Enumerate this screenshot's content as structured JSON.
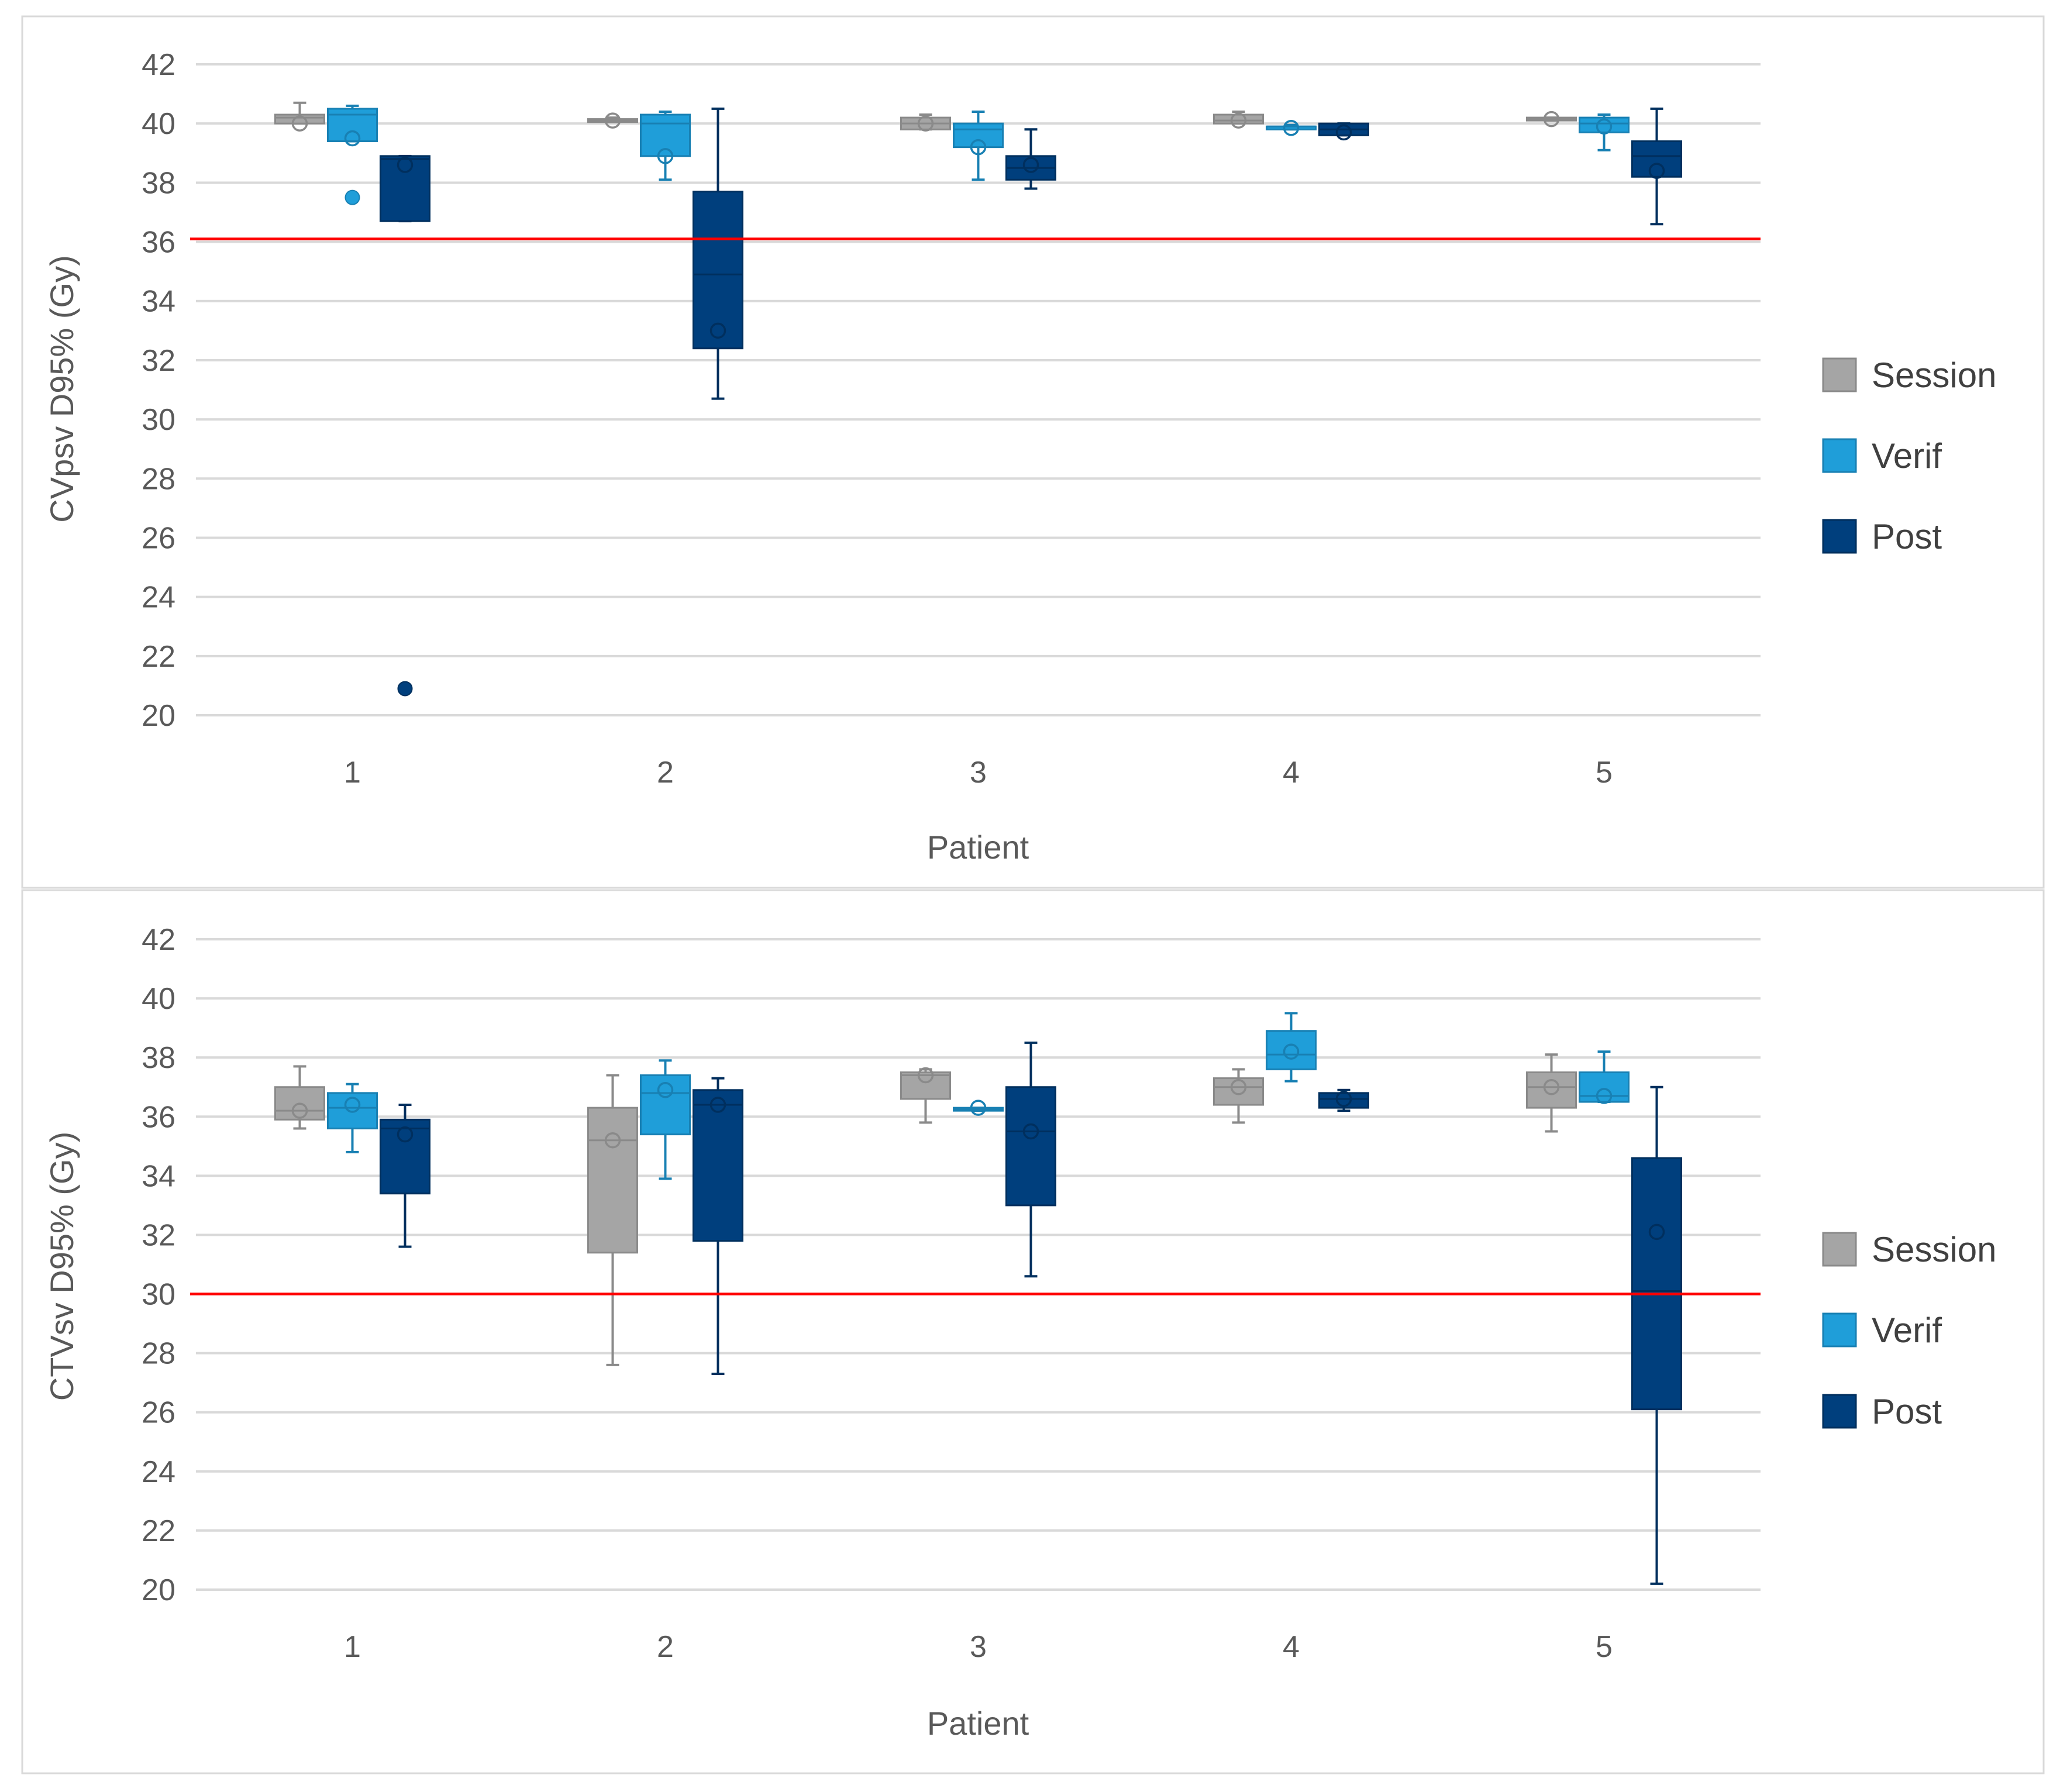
{
  "colors": {
    "Session": "#a5a5a5",
    "Verif": "#1f9ed9",
    "Post": "#003f7d",
    "ref_line": "#ff0000"
  },
  "chart_data": [
    {
      "type": "box",
      "ylabel": "CVpsv D95% (Gy)",
      "xlabel": "Patient",
      "ylim": [
        20,
        42
      ],
      "ytick_step": 2,
      "categories": [
        "1",
        "2",
        "3",
        "4",
        "5"
      ],
      "reference_line": 36.1,
      "legend": [
        "Session",
        "Verif",
        "Post"
      ],
      "series": [
        {
          "name": "Session",
          "boxes": [
            {
              "min": 40.0,
              "q1": 40.0,
              "median": 40.2,
              "q3": 40.3,
              "max": 40.7,
              "mean": 40.0,
              "outliers": []
            },
            {
              "min": 40.05,
              "q1": 40.05,
              "median": 40.1,
              "q3": 40.15,
              "max": 40.2,
              "mean": 40.1,
              "outliers": []
            },
            {
              "min": 39.8,
              "q1": 39.8,
              "median": 40.0,
              "q3": 40.2,
              "max": 40.3,
              "mean": 40.0,
              "outliers": []
            },
            {
              "min": 40.0,
              "q1": 40.0,
              "median": 40.1,
              "q3": 40.3,
              "max": 40.4,
              "mean": 40.1,
              "outliers": []
            },
            {
              "min": 40.1,
              "q1": 40.1,
              "median": 40.15,
              "q3": 40.2,
              "max": 40.2,
              "mean": 40.15,
              "outliers": []
            }
          ]
        },
        {
          "name": "Verif",
          "boxes": [
            {
              "min": 39.4,
              "q1": 39.4,
              "median": 40.3,
              "q3": 40.5,
              "max": 40.6,
              "mean": 39.5,
              "outliers": [
                37.5
              ]
            },
            {
              "min": 38.1,
              "q1": 38.9,
              "median": 40.0,
              "q3": 40.3,
              "max": 40.4,
              "mean": 38.9,
              "outliers": []
            },
            {
              "min": 38.1,
              "q1": 39.2,
              "median": 39.8,
              "q3": 40.0,
              "max": 40.4,
              "mean": 39.2,
              "outliers": []
            },
            {
              "min": 39.8,
              "q1": 39.8,
              "median": 39.9,
              "q3": 39.9,
              "max": 39.95,
              "mean": 39.85,
              "outliers": []
            },
            {
              "min": 39.1,
              "q1": 39.7,
              "median": 40.0,
              "q3": 40.2,
              "max": 40.3,
              "mean": 39.9,
              "outliers": []
            }
          ]
        },
        {
          "name": "Post",
          "boxes": [
            {
              "min": 36.7,
              "q1": 36.7,
              "median": 38.8,
              "q3": 38.9,
              "max": 38.9,
              "mean": 38.6,
              "outliers": [
                20.9
              ]
            },
            {
              "min": 30.7,
              "q1": 32.4,
              "median": 34.9,
              "q3": 37.7,
              "max": 40.5,
              "mean": 33.0,
              "outliers": []
            },
            {
              "min": 37.8,
              "q1": 38.1,
              "median": 38.5,
              "q3": 38.9,
              "max": 39.8,
              "mean": 38.6,
              "outliers": []
            },
            {
              "min": 39.6,
              "q1": 39.6,
              "median": 39.8,
              "q3": 40.0,
              "max": 40.0,
              "mean": 39.7,
              "outliers": []
            },
            {
              "min": 36.6,
              "q1": 38.2,
              "median": 38.9,
              "q3": 39.4,
              "max": 40.5,
              "mean": 38.4,
              "outliers": []
            }
          ]
        }
      ]
    },
    {
      "type": "box",
      "ylabel": "CTVsv D95% (Gy)",
      "xlabel": "Patient",
      "ylim": [
        20,
        42
      ],
      "ytick_step": 2,
      "categories": [
        "1",
        "2",
        "3",
        "4",
        "5"
      ],
      "reference_line": 30.0,
      "legend": [
        "Session",
        "Verif",
        "Post"
      ],
      "series": [
        {
          "name": "Session",
          "boxes": [
            {
              "min": 35.6,
              "q1": 35.9,
              "median": 36.2,
              "q3": 37.0,
              "max": 37.7,
              "mean": 36.2,
              "outliers": []
            },
            {
              "min": 27.6,
              "q1": 31.4,
              "median": 35.2,
              "q3": 36.3,
              "max": 37.4,
              "mean": 35.2,
              "outliers": []
            },
            {
              "min": 35.8,
              "q1": 36.6,
              "median": 37.4,
              "q3": 37.5,
              "max": 37.6,
              "mean": 37.4,
              "outliers": []
            },
            {
              "min": 35.8,
              "q1": 36.4,
              "median": 37.0,
              "q3": 37.3,
              "max": 37.6,
              "mean": 37.0,
              "outliers": []
            },
            {
              "min": 35.5,
              "q1": 36.3,
              "median": 37.0,
              "q3": 37.5,
              "max": 38.1,
              "mean": 37.0,
              "outliers": []
            }
          ]
        },
        {
          "name": "Verif",
          "boxes": [
            {
              "min": 34.8,
              "q1": 35.6,
              "median": 36.3,
              "q3": 36.8,
              "max": 37.1,
              "mean": 36.4,
              "outliers": []
            },
            {
              "min": 33.9,
              "q1": 35.4,
              "median": 36.8,
              "q3": 37.4,
              "max": 37.9,
              "mean": 36.9,
              "outliers": []
            },
            {
              "min": 36.2,
              "q1": 36.2,
              "median": 36.25,
              "q3": 36.3,
              "max": 36.3,
              "mean": 36.3,
              "outliers": []
            },
            {
              "min": 37.2,
              "q1": 37.6,
              "median": 38.1,
              "q3": 38.9,
              "max": 39.5,
              "mean": 38.2,
              "outliers": []
            },
            {
              "min": 36.5,
              "q1": 36.5,
              "median": 36.7,
              "q3": 37.5,
              "max": 38.2,
              "mean": 36.7,
              "outliers": []
            }
          ]
        },
        {
          "name": "Post",
          "boxes": [
            {
              "min": 31.6,
              "q1": 33.4,
              "median": 35.6,
              "q3": 35.9,
              "max": 36.4,
              "mean": 35.4,
              "outliers": []
            },
            {
              "min": 27.3,
              "q1": 31.8,
              "median": 36.4,
              "q3": 36.9,
              "max": 37.3,
              "mean": 36.4,
              "outliers": []
            },
            {
              "min": 30.6,
              "q1": 33.0,
              "median": 35.5,
              "q3": 37.0,
              "max": 38.5,
              "mean": 35.5,
              "outliers": []
            },
            {
              "min": 36.2,
              "q1": 36.3,
              "median": 36.6,
              "q3": 36.8,
              "max": 36.9,
              "mean": 36.6,
              "outliers": []
            },
            {
              "min": 20.2,
              "q1": 26.1,
              "median": 30.1,
              "q3": 34.6,
              "max": 37.0,
              "mean": 32.1,
              "outliers": []
            }
          ]
        }
      ]
    }
  ]
}
